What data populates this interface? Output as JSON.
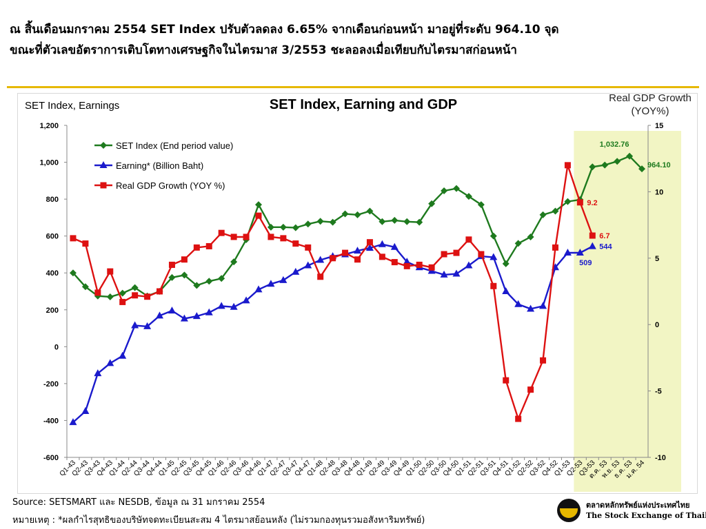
{
  "headline": {
    "line1": "ณ สิ้นเดือนมกราคม 2554 SET Index ปรับตัวลดลง 6.65% จากเดือนก่อนหน้า มาอยู่ที่ระดับ 964.10 จุด",
    "line2": "ขณะที่ตัวเลขอัตราการเติบโตทางเศรษฐกิจในไตรมาส 3/2553 ชะลอลงเมื่อเทียบกับไตรมาสก่อนหน้า"
  },
  "footer": {
    "source": "Source: SETSMART และ NESDB, ข้อมูล ณ  31 มกราคม 2554",
    "note": "หมายเหตุ : *ผลกำไรสุทธิของบริษัทจดทะเบียนสะสม 4 ไตรมาสย้อนหลัง (ไม่รวมกองทุนรวมอสังหาริมทรัพย์)"
  },
  "logo": {
    "thai": "ตลาดหลักทรัพย์แห่งประเทศไทย",
    "english": "The Stock Exchange of Thailand"
  },
  "chart_data": {
    "type": "line",
    "title": "SET Index, Earning and GDP",
    "ylabel_left": "SET Index, Earnings",
    "ylabel_right": "Real GDP Growth\n(YOY%)",
    "ylim_left": [
      -600,
      1200
    ],
    "yticks_left": [
      -600,
      -400,
      -200,
      0,
      200,
      400,
      600,
      800,
      1000,
      1200
    ],
    "ylim_right": [
      -10,
      15
    ],
    "yticks_right": [
      -10,
      -5,
      0,
      5,
      10,
      15
    ],
    "legend_position": "top-left",
    "grid": false,
    "highlight_band": {
      "from_category": "Q2-53",
      "to_category": "ม.ค. 54",
      "color": "#f2f5c4"
    },
    "categories": [
      "Q1-43",
      "Q2-43",
      "Q3-43",
      "Q4-43",
      "Q1-44",
      "Q2-44",
      "Q3-44",
      "Q4-44",
      "Q1-45",
      "Q2-45",
      "Q3-45",
      "Q4-45",
      "Q1-46",
      "Q2-46",
      "Q3-46",
      "Q4-46",
      "Q1-47",
      "Q2-47",
      "Q3-47",
      "Q4-47",
      "Q1-48",
      "Q2-48",
      "Q3-48",
      "Q4-48",
      "Q1-49",
      "Q2-49",
      "Q3-49",
      "Q4-49",
      "Q1-50",
      "Q2-50",
      "Q3-50",
      "Q4-50",
      "Q1-51",
      "Q2-51",
      "Q3-51",
      "Q4-51",
      "Q1-52",
      "Q2-52",
      "Q3-52",
      "Q4-52",
      "Q1-53",
      "Q2-53",
      "Q3-53",
      "ต.ค. 53",
      "พ.ย. 53",
      "ธ.ค. 53",
      "ม.ค. 54"
    ],
    "series": [
      {
        "name": "SET Index (End period value)",
        "axis": "left",
        "color": "#1e7a1e",
        "marker": "diamond",
        "values": [
          400,
          325,
          275,
          270,
          290,
          320,
          275,
          300,
          375,
          388,
          332,
          355,
          370,
          460,
          580,
          770,
          648,
          648,
          645,
          665,
          680,
          675,
          720,
          715,
          735,
          678,
          685,
          678,
          675,
          775,
          845,
          858,
          815,
          770,
          600,
          450,
          560,
          595,
          715,
          735,
          787,
          797,
          975,
          985,
          1005,
          1032.76,
          964.1
        ]
      },
      {
        "name": "Earning* (Billion Baht)",
        "axis": "left",
        "color": "#1a1acc",
        "marker": "triangle",
        "values": [
          -410,
          -350,
          -145,
          -90,
          -50,
          115,
          110,
          168,
          195,
          152,
          165,
          185,
          220,
          215,
          250,
          310,
          340,
          360,
          405,
          440,
          470,
          490,
          500,
          520,
          535,
          555,
          540,
          460,
          430,
          410,
          390,
          395,
          440,
          490,
          485,
          300,
          230,
          205,
          220,
          430,
          509,
          509,
          544,
          null,
          null,
          null,
          null
        ]
      },
      {
        "name": "Real GDP Growth (YOY %)",
        "axis": "right",
        "color": "#dd1111",
        "marker": "square",
        "values": [
          6.5,
          6.1,
          2.4,
          4.0,
          1.7,
          2.2,
          2.1,
          2.5,
          4.5,
          4.9,
          5.8,
          5.9,
          6.9,
          6.6,
          6.6,
          8.2,
          6.6,
          6.5,
          6.1,
          5.8,
          3.6,
          5.0,
          5.4,
          4.9,
          6.2,
          5.1,
          4.7,
          4.4,
          4.5,
          4.3,
          5.3,
          5.4,
          6.4,
          5.3,
          2.9,
          -4.2,
          -7.1,
          -4.9,
          -2.7,
          5.8,
          12.0,
          9.2,
          6.7,
          null,
          null,
          null,
          null
        ]
      }
    ],
    "data_labels": [
      {
        "series": 0,
        "index": 45,
        "text": "1,032.76"
      },
      {
        "series": 0,
        "index": 46,
        "text": "964.10"
      },
      {
        "series": 2,
        "index": 41,
        "text": "9.2"
      },
      {
        "series": 2,
        "index": 42,
        "text": "6.7"
      },
      {
        "series": 1,
        "index": 42,
        "text": "544"
      },
      {
        "series": 1,
        "index": 41,
        "text": "509"
      }
    ]
  }
}
